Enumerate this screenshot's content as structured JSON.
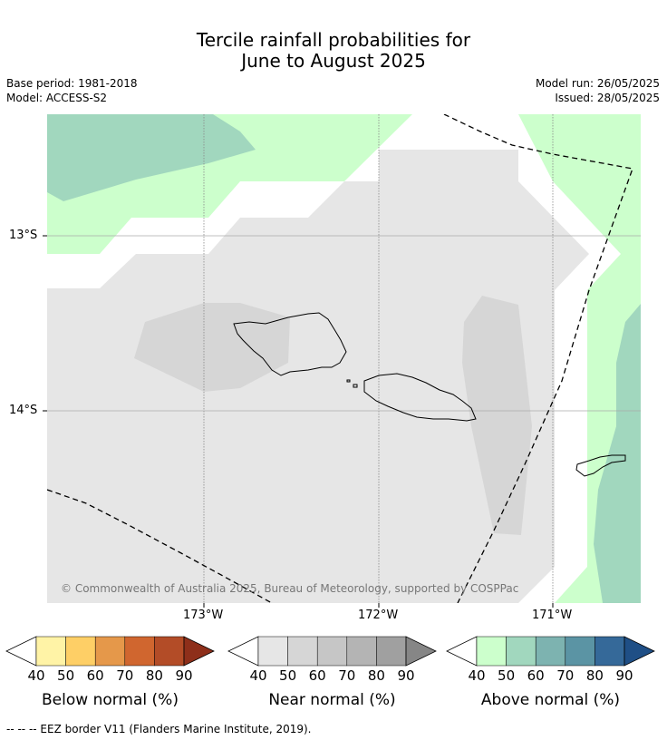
{
  "title_line1": "Tercile rainfall probabilities for",
  "title_line2": "June to August 2025",
  "base_period": "Base period: 1981-2018",
  "model": "Model: ACCESS-S2",
  "model_run": "Model run: 26/05/2025",
  "issued": "Issued: 28/05/2025",
  "lat_ticks": [
    "13°S",
    "14°S"
  ],
  "lon_ticks": [
    "173°W",
    "172°W",
    "171°W"
  ],
  "copyright": "© Commonwealth of Australia 2025, Bureau of Meteorology, supported by COSPPac",
  "colorbars": [
    {
      "title": "Below normal (%)",
      "labels": [
        "40",
        "50",
        "60",
        "70",
        "80",
        "90"
      ],
      "colors": [
        "#fff3a6",
        "#fecf66",
        "#e5984a",
        "#d0662f",
        "#b34c27",
        "#8e2f1a"
      ]
    },
    {
      "title": "Near normal (%)",
      "labels": [
        "40",
        "50",
        "60",
        "70",
        "80",
        "90"
      ],
      "colors": [
        "#e6e6e6",
        "#d6d6d6",
        "#c6c6c6",
        "#b4b4b4",
        "#a0a0a0",
        "#868686"
      ]
    },
    {
      "title": "Above normal (%)",
      "labels": [
        "40",
        "50",
        "60",
        "70",
        "80",
        "90"
      ],
      "colors": [
        "#ccffcc",
        "#a1d7be",
        "#7db3b0",
        "#5b94a4",
        "#356999",
        "#1f4f86"
      ]
    }
  ],
  "footnote": "--  --  -- EEZ border V11 (Flanders Marine Institute, 2019).",
  "colors": {
    "above_40": "#ccffcc",
    "above_50": "#a1d7be",
    "near_40": "#e6e6e6",
    "near_50": "#d6d6d6",
    "no_signal": "#ffffff"
  }
}
